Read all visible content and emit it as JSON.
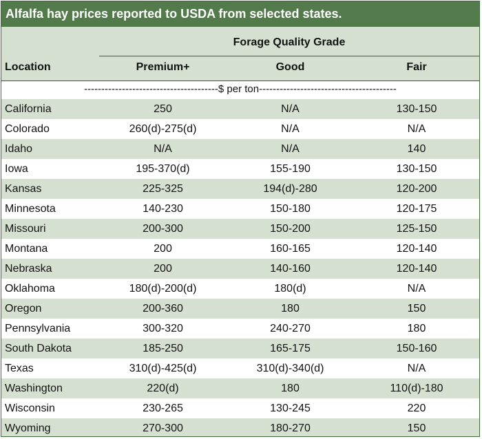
{
  "title": "Alfalfa hay prices reported to USDA from selected states.",
  "group_header": "Forage Quality Grade",
  "columns": {
    "location": "Location",
    "premium": "Premium+",
    "good": "Good",
    "fair": "Fair"
  },
  "units": "---------------------------------------$ per ton----------------------------------------",
  "rows": [
    {
      "location": "California",
      "premium": "250",
      "good": "N/A",
      "fair": "130-150"
    },
    {
      "location": "Colorado",
      "premium": "260(d)-275(d)",
      "good": "N/A",
      "fair": "N/A"
    },
    {
      "location": "Idaho",
      "premium": "N/A",
      "good": "N/A",
      "fair": "140"
    },
    {
      "location": "Iowa",
      "premium": "195-370(d)",
      "good": "155-190",
      "fair": "130-150"
    },
    {
      "location": "Kansas",
      "premium": "225-325",
      "good": "194(d)-280",
      "fair": "120-200"
    },
    {
      "location": "Minnesota",
      "premium": "140-230",
      "good": "150-180",
      "fair": "120-175"
    },
    {
      "location": "Missouri",
      "premium": "200-300",
      "good": "150-200",
      "fair": "125-150"
    },
    {
      "location": "Montana",
      "premium": "200",
      "good": "160-165",
      "fair": "120-140"
    },
    {
      "location": "Nebraska",
      "premium": "200",
      "good": "140-160",
      "fair": "120-140"
    },
    {
      "location": "Oklahoma",
      "premium": "180(d)-200(d)",
      "good": "180(d)",
      "fair": "N/A"
    },
    {
      "location": "Oregon",
      "premium": "200-360",
      "good": "180",
      "fair": "150"
    },
    {
      "location": "Pennsylvania",
      "premium": "300-320",
      "good": "240-270",
      "fair": "180"
    },
    {
      "location": "South Dakota",
      "premium": "185-250",
      "good": "165-175",
      "fair": "150-160"
    },
    {
      "location": "Texas",
      "premium": "310(d)-425(d)",
      "good": "310(d)-340(d)",
      "fair": "N/A"
    },
    {
      "location": "Washington",
      "premium": "220(d)",
      "good": "180",
      "fair": "110(d)-180"
    },
    {
      "location": "Wisconsin",
      "premium": "230-265",
      "good": "130-245",
      "fair": "220"
    },
    {
      "location": "Wyoming",
      "premium": "270-300",
      "good": "180-270",
      "fair": "150"
    }
  ],
  "colors": {
    "title_bg": "#527a4a",
    "band": "#d6e0d0",
    "border": "#3f6b3a"
  }
}
